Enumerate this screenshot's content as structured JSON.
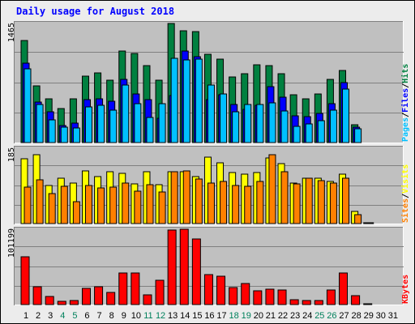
{
  "title": "Daily usage for August 2018",
  "colors": {
    "background": "#ececec",
    "plot_background": "#c0c0c0",
    "title": "#0000ff",
    "hits": "#008040",
    "files": "#0000ff",
    "pages": "#00c0ff",
    "visits": "#ffff00",
    "sites": "#ff8000",
    "kbytes": "#ff0000",
    "weekend_label": "#00805c",
    "weekday_label": "#000000"
  },
  "chart_data": [
    {
      "type": "bar",
      "name": "hits-files-pages",
      "ymax_label": "1465",
      "ylim": [
        0,
        1465
      ],
      "categories": [
        "1",
        "2",
        "3",
        "4",
        "5",
        "6",
        "7",
        "8",
        "9",
        "10",
        "11",
        "12",
        "13",
        "14",
        "15",
        "16",
        "17",
        "18",
        "19",
        "20",
        "21",
        "22",
        "23",
        "24",
        "25",
        "26",
        "27",
        "28",
        "29",
        "30",
        "31"
      ],
      "weekend_days": [
        "4",
        "5",
        "11",
        "12",
        "18",
        "19",
        "25",
        "26"
      ],
      "legend": [
        "Pages",
        "/",
        "Files",
        "/",
        "Hits"
      ],
      "series": [
        {
          "name": "Hits",
          "values": [
            1255,
            700,
            540,
            420,
            540,
            820,
            855,
            770,
            1130,
            1095,
            945,
            765,
            1465,
            1375,
            1365,
            1090,
            1030,
            810,
            850,
            960,
            945,
            850,
            590,
            540,
            600,
            775,
            885,
            215,
            0,
            null,
            null
          ]
        },
        {
          "name": "Files",
          "values": [
            980,
            500,
            375,
            210,
            240,
            530,
            540,
            505,
            780,
            600,
            530,
            300,
            575,
            1125,
            1055,
            525,
            590,
            470,
            405,
            455,
            685,
            555,
            325,
            320,
            355,
            480,
            740,
            190,
            0,
            null,
            null
          ]
        },
        {
          "name": "Pages",
          "values": [
            910,
            465,
            280,
            185,
            180,
            440,
            460,
            395,
            705,
            480,
            305,
            480,
            1040,
            1020,
            1030,
            710,
            600,
            380,
            470,
            465,
            490,
            390,
            200,
            225,
            270,
            400,
            655,
            165,
            0,
            null,
            null
          ]
        }
      ]
    },
    {
      "type": "bar",
      "name": "visits-sites",
      "ymax_label": "185",
      "ylim": [
        0,
        185
      ],
      "categories": [
        "1",
        "2",
        "3",
        "4",
        "5",
        "6",
        "7",
        "8",
        "9",
        "10",
        "11",
        "12",
        "13",
        "14",
        "15",
        "16",
        "17",
        "18",
        "19",
        "20",
        "21",
        "22",
        "23",
        "24",
        "25",
        "26",
        "27",
        "28",
        "29",
        "30",
        "31"
      ],
      "legend": [
        "Sites",
        "/",
        "Visits"
      ],
      "series": [
        {
          "name": "Visits",
          "values": [
            160,
            170,
            94,
            112,
            100,
            130,
            116,
            128,
            124,
            98,
            127,
            96,
            127,
            127,
            116,
            163,
            150,
            125,
            122,
            125,
            162,
            148,
            100,
            112,
            112,
            104,
            122,
            30,
            2,
            null,
            null
          ]
        },
        {
          "name": "Sites",
          "values": [
            90,
            108,
            74,
            92,
            54,
            93,
            88,
            90,
            100,
            80,
            96,
            78,
            128,
            130,
            109,
            100,
            103,
            94,
            92,
            104,
            170,
            128,
            98,
            112,
            106,
            100,
            112,
            22,
            2,
            null,
            null
          ]
        }
      ]
    },
    {
      "type": "bar",
      "name": "kbytes",
      "ymax_label": "101199",
      "ylim": [
        0,
        101199
      ],
      "categories": [
        "1",
        "2",
        "3",
        "4",
        "5",
        "6",
        "7",
        "8",
        "9",
        "10",
        "11",
        "12",
        "13",
        "14",
        "15",
        "16",
        "17",
        "18",
        "19",
        "20",
        "21",
        "22",
        "23",
        "24",
        "25",
        "26",
        "27",
        "28",
        "29",
        "30",
        "31"
      ],
      "legend": [
        "KBytes"
      ],
      "series": [
        {
          "name": "KBytes",
          "values": [
            64000,
            23500,
            11000,
            4000,
            5000,
            21500,
            24000,
            16000,
            42000,
            42000,
            13500,
            32500,
            100500,
            101199,
            88000,
            40000,
            38000,
            23000,
            28000,
            18500,
            20500,
            19500,
            6000,
            5000,
            5000,
            20000,
            42000,
            11500,
            900,
            null,
            null
          ]
        }
      ]
    }
  ]
}
